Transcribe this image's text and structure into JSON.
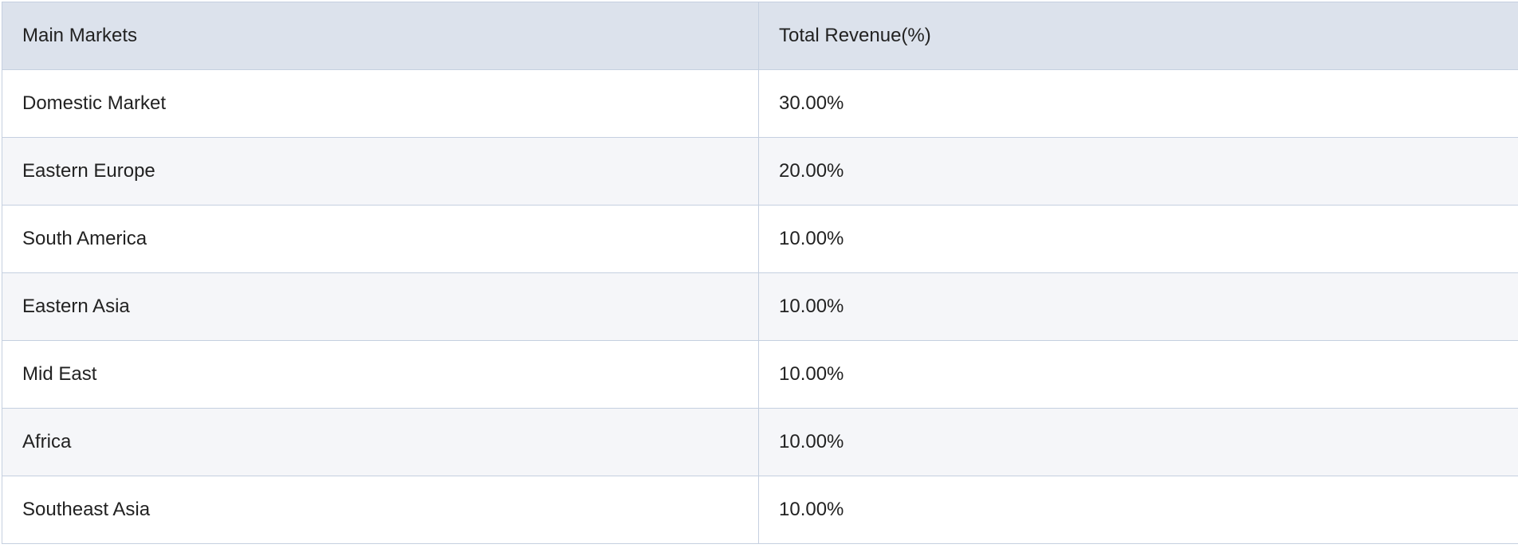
{
  "table": {
    "headers": [
      "Main Markets",
      "Total Revenue(%)"
    ],
    "rows": [
      {
        "market": "Domestic Market",
        "revenue": "30.00%"
      },
      {
        "market": "Eastern Europe",
        "revenue": "20.00%"
      },
      {
        "market": "South America",
        "revenue": "10.00%"
      },
      {
        "market": "Eastern Asia",
        "revenue": "10.00%"
      },
      {
        "market": "Mid East",
        "revenue": "10.00%"
      },
      {
        "market": "Africa",
        "revenue": "10.00%"
      },
      {
        "market": "Southeast Asia",
        "revenue": "10.00%"
      }
    ]
  },
  "colors": {
    "header_bg": "#dce2ec",
    "row_alt_bg": "#f5f6f9",
    "border": "#c5d0e0"
  }
}
